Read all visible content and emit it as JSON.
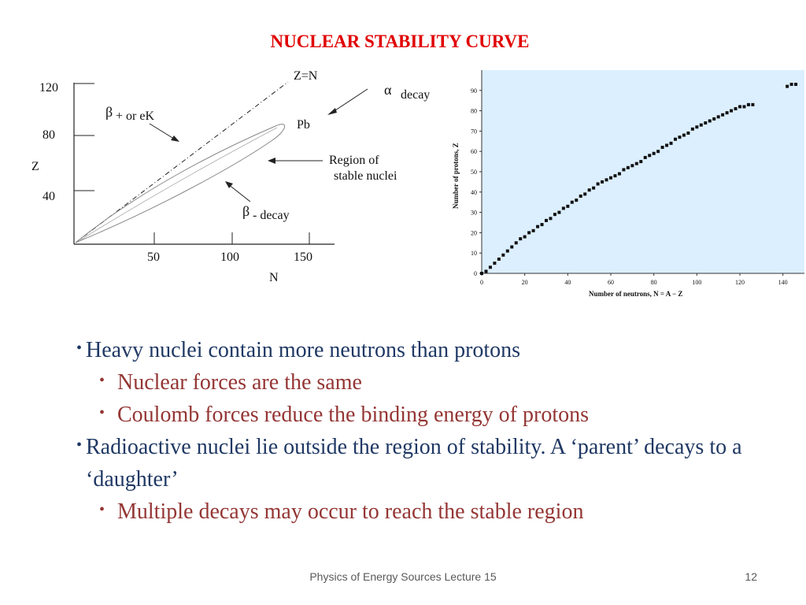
{
  "slide": {
    "title": "NUCLEAR STABILITY CURVE",
    "footer": "Physics of Energy Sources Lecture 15",
    "page_number": "12"
  },
  "diagram": {
    "y_ticks": [
      "120",
      "80",
      "40"
    ],
    "x_ticks": [
      "50",
      "100",
      "150"
    ],
    "y_label": "Z",
    "x_label": "N",
    "line_label": "Z=N",
    "alpha_symbol": "α",
    "alpha_text": "decay",
    "beta_plus_symbol": "β",
    "beta_plus_text": "+ or eK",
    "pb_label": "Pb",
    "region_line1": "Region of",
    "region_line2": "stable nuclei",
    "beta_minus_symbol": "β",
    "beta_minus_text": "- decay"
  },
  "chart_data": {
    "type": "scatter",
    "xlabel": "Number of neutrons, N = A − Z",
    "ylabel": "Number of protons, Z",
    "xlim": [
      0,
      150
    ],
    "ylim": [
      0,
      100
    ],
    "x_ticks": [
      "0",
      "20",
      "40",
      "60",
      "80",
      "100",
      "120",
      "140"
    ],
    "y_ticks": [
      "0",
      "10",
      "20",
      "30",
      "40",
      "50",
      "60",
      "70",
      "80",
      "90"
    ],
    "background": "#dcefff",
    "marker_color": "#111111",
    "stability_band": [
      {
        "x": 0,
        "y": 0
      },
      {
        "x": 2,
        "y": 1
      },
      {
        "x": 4,
        "y": 3
      },
      {
        "x": 6,
        "y": 5
      },
      {
        "x": 8,
        "y": 7
      },
      {
        "x": 10,
        "y": 9
      },
      {
        "x": 12,
        "y": 11
      },
      {
        "x": 14,
        "y": 13
      },
      {
        "x": 16,
        "y": 15
      },
      {
        "x": 18,
        "y": 17
      },
      {
        "x": 20,
        "y": 18
      },
      {
        "x": 22,
        "y": 20
      },
      {
        "x": 24,
        "y": 21
      },
      {
        "x": 26,
        "y": 23
      },
      {
        "x": 28,
        "y": 24
      },
      {
        "x": 30,
        "y": 26
      },
      {
        "x": 32,
        "y": 27
      },
      {
        "x": 34,
        "y": 29
      },
      {
        "x": 36,
        "y": 30
      },
      {
        "x": 38,
        "y": 32
      },
      {
        "x": 40,
        "y": 33
      },
      {
        "x": 42,
        "y": 35
      },
      {
        "x": 44,
        "y": 36
      },
      {
        "x": 46,
        "y": 38
      },
      {
        "x": 48,
        "y": 39
      },
      {
        "x": 50,
        "y": 41
      },
      {
        "x": 52,
        "y": 42
      },
      {
        "x": 54,
        "y": 44
      },
      {
        "x": 56,
        "y": 45
      },
      {
        "x": 58,
        "y": 46
      },
      {
        "x": 60,
        "y": 47
      },
      {
        "x": 62,
        "y": 48
      },
      {
        "x": 64,
        "y": 49
      },
      {
        "x": 66,
        "y": 51
      },
      {
        "x": 68,
        "y": 52
      },
      {
        "x": 70,
        "y": 53
      },
      {
        "x": 72,
        "y": 54
      },
      {
        "x": 74,
        "y": 55
      },
      {
        "x": 76,
        "y": 57
      },
      {
        "x": 78,
        "y": 58
      },
      {
        "x": 80,
        "y": 59
      },
      {
        "x": 82,
        "y": 60
      },
      {
        "x": 84,
        "y": 62
      },
      {
        "x": 86,
        "y": 63
      },
      {
        "x": 88,
        "y": 64
      },
      {
        "x": 90,
        "y": 66
      },
      {
        "x": 92,
        "y": 67
      },
      {
        "x": 94,
        "y": 68
      },
      {
        "x": 96,
        "y": 69
      },
      {
        "x": 98,
        "y": 71
      },
      {
        "x": 100,
        "y": 72
      },
      {
        "x": 102,
        "y": 73
      },
      {
        "x": 104,
        "y": 74
      },
      {
        "x": 106,
        "y": 75
      },
      {
        "x": 108,
        "y": 76
      },
      {
        "x": 110,
        "y": 77
      },
      {
        "x": 112,
        "y": 78
      },
      {
        "x": 114,
        "y": 79
      },
      {
        "x": 116,
        "y": 80
      },
      {
        "x": 118,
        "y": 81
      },
      {
        "x": 120,
        "y": 82
      },
      {
        "x": 122,
        "y": 82
      },
      {
        "x": 124,
        "y": 83
      },
      {
        "x": 126,
        "y": 83
      },
      {
        "x": 142,
        "y": 92
      },
      {
        "x": 144,
        "y": 93
      },
      {
        "x": 146,
        "y": 93
      }
    ]
  },
  "bullets": [
    {
      "level": 1,
      "text": "Heavy nuclei contain more neutrons than protons"
    },
    {
      "level": 2,
      "text": "Nuclear forces are the same"
    },
    {
      "level": 2,
      "text": "Coulomb forces reduce the binding energy of protons"
    },
    {
      "level": 1,
      "text": "Radioactive nuclei lie outside the region of stability. A ‘parent’ decays to a ‘daughter’"
    },
    {
      "level": 2,
      "text": "Multiple decays may occur  to  reach the stable region"
    }
  ]
}
